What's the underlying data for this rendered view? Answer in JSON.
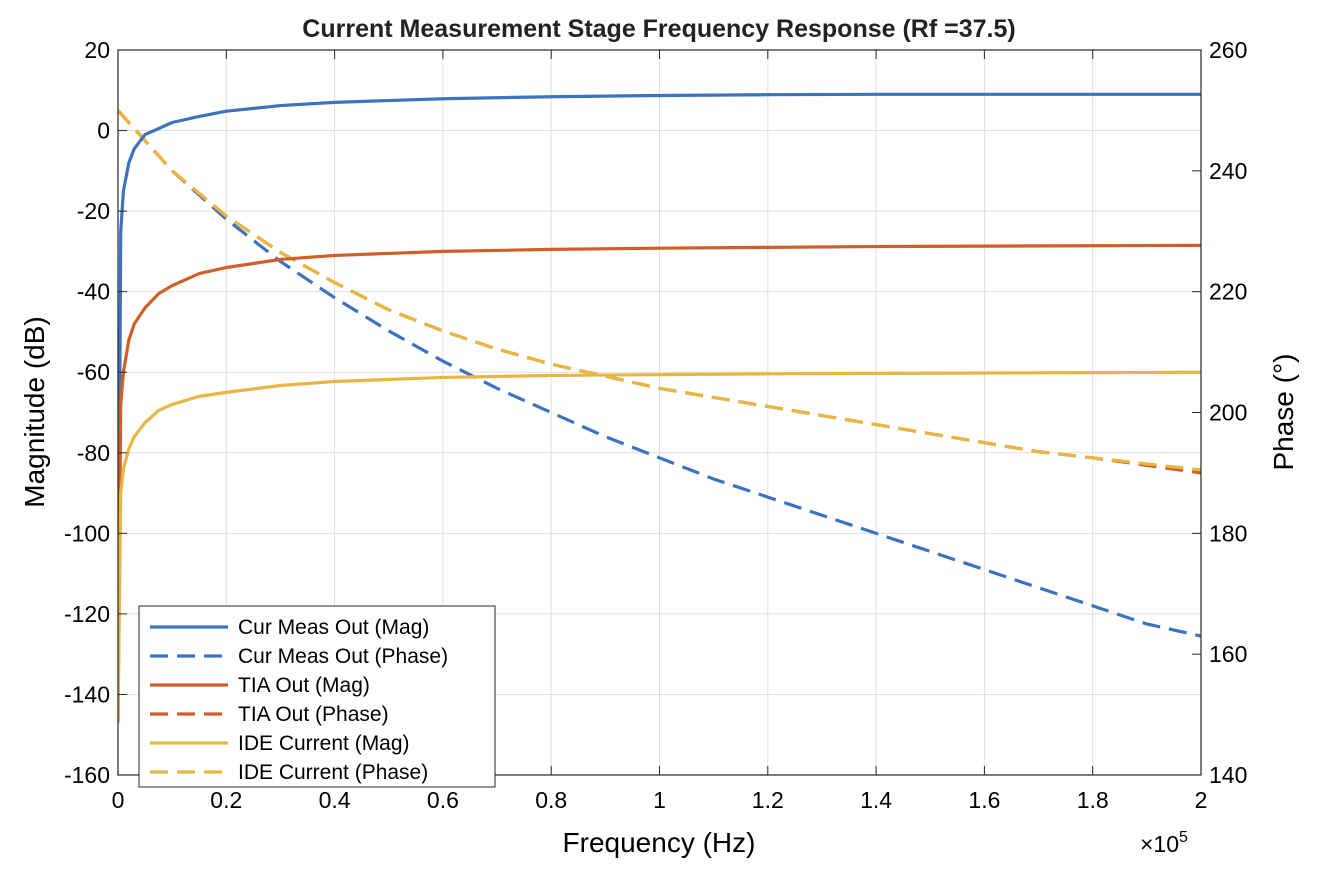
{
  "chart_data": {
    "type": "line",
    "title": "Current Measurement Stage Frequency Response (Rf =37.5)",
    "xlabel": "Frequency (Hz)",
    "ylabel_left": "Magnitude (dB)",
    "ylabel_right": "Phase (°)",
    "x_exponent_label": "×10",
    "x_exponent_power": "5",
    "xlim": [
      0,
      200000
    ],
    "ylim_left": [
      -160,
      20
    ],
    "ylim_right": [
      140,
      260
    ],
    "x_ticks": [
      0,
      20000,
      40000,
      60000,
      80000,
      100000,
      120000,
      140000,
      160000,
      180000,
      200000
    ],
    "x_tick_labels": [
      "0",
      "0.2",
      "0.4",
      "0.6",
      "0.8",
      "1",
      "1.2",
      "1.4",
      "1.6",
      "1.8",
      "2"
    ],
    "y_left_ticks": [
      20,
      0,
      -20,
      -40,
      -60,
      -80,
      -100,
      -120,
      -140,
      -160
    ],
    "y_left_tick_labels": [
      "20",
      "0",
      "-20",
      "-40",
      "-60",
      "-80",
      "-100",
      "-120",
      "-140",
      "-160"
    ],
    "y_right_ticks": [
      260,
      240,
      220,
      200,
      180,
      160,
      140
    ],
    "y_right_tick_labels": [
      "260",
      "240",
      "220",
      "200",
      "180",
      "160",
      "140"
    ],
    "grid": true,
    "legend_position": "bottom-left",
    "colors": {
      "blue": "#3B73C0",
      "orange": "#D15E26",
      "yellow": "#E8B641"
    },
    "series": [
      {
        "name": "Cur Meas Out (Mag)",
        "axis": "left",
        "style": "solid",
        "color": "#3B73C0",
        "x": [
          0,
          500,
          1000,
          2000,
          3000,
          5000,
          7500,
          10000,
          15000,
          20000,
          30000,
          40000,
          60000,
          80000,
          100000,
          120000,
          140000,
          160000,
          180000,
          200000
        ],
        "y": [
          -147,
          -25,
          -15,
          -8,
          -4.5,
          -1,
          0.5,
          2,
          3.5,
          4.8,
          6.2,
          7,
          7.9,
          8.4,
          8.7,
          8.9,
          9,
          9,
          9,
          9
        ]
      },
      {
        "name": "Cur Meas Out (Phase)",
        "axis": "right",
        "style": "dashed",
        "color": "#3B73C0",
        "x": [
          0,
          10000,
          20000,
          30000,
          40000,
          50000,
          60000,
          70000,
          80000,
          90000,
          100000,
          110000,
          120000,
          130000,
          140000,
          150000,
          160000,
          170000,
          180000,
          190000,
          200000
        ],
        "y": [
          250,
          240,
          232,
          225,
          219,
          213.5,
          208.5,
          204,
          200,
          196,
          192.5,
          189,
          186,
          183,
          180,
          177,
          174,
          171,
          168,
          165,
          163
        ]
      },
      {
        "name": "TIA Out (Mag)",
        "axis": "left",
        "style": "solid",
        "color": "#D15E26",
        "x": [
          0,
          500,
          1000,
          2000,
          3000,
          5000,
          7500,
          10000,
          15000,
          20000,
          30000,
          40000,
          60000,
          80000,
          100000,
          120000,
          140000,
          160000,
          180000,
          200000
        ],
        "y": [
          -147,
          -68,
          -60,
          -52,
          -48,
          -44,
          -40.5,
          -38.5,
          -35.5,
          -34,
          -32,
          -31,
          -30,
          -29.5,
          -29.2,
          -29,
          -28.8,
          -28.7,
          -28.6,
          -28.5
        ]
      },
      {
        "name": "TIA Out (Phase)",
        "axis": "right",
        "style": "dashed",
        "color": "#D15E26",
        "x": [
          0,
          10000,
          20000,
          30000,
          40000,
          50000,
          60000,
          70000,
          80000,
          90000,
          100000,
          110000,
          120000,
          130000,
          140000,
          150000,
          160000,
          170000,
          180000,
          200000
        ],
        "y": [
          250,
          240,
          232.5,
          226.5,
          221.5,
          217,
          213.5,
          210.5,
          208,
          206,
          204,
          202.5,
          201,
          199.5,
          198,
          196.5,
          195,
          193.5,
          192.5,
          190
        ]
      },
      {
        "name": "IDE Current (Mag)",
        "axis": "left",
        "style": "solid",
        "color": "#E8B641",
        "x": [
          0,
          500,
          1000,
          2000,
          3000,
          5000,
          7500,
          10000,
          15000,
          20000,
          30000,
          40000,
          60000,
          80000,
          100000,
          120000,
          140000,
          160000,
          180000,
          200000
        ],
        "y": [
          -147,
          -90,
          -84,
          -79,
          -76,
          -72.5,
          -69.5,
          -68,
          -66,
          -65,
          -63.3,
          -62.3,
          -61.3,
          -60.8,
          -60.6,
          -60.4,
          -60.3,
          -60.2,
          -60.1,
          -60
        ]
      },
      {
        "name": "IDE Current (Phase)",
        "axis": "right",
        "style": "dashed",
        "color": "#E8B641",
        "x": [
          0,
          10000,
          20000,
          30000,
          40000,
          50000,
          60000,
          70000,
          80000,
          90000,
          100000,
          110000,
          120000,
          130000,
          140000,
          150000,
          160000,
          170000,
          180000,
          200000
        ],
        "y": [
          250,
          240,
          232.5,
          226.5,
          221.5,
          217,
          213.5,
          210.5,
          208,
          206,
          204,
          202.5,
          201,
          199.5,
          198,
          196.5,
          195,
          193.5,
          192.5,
          190.5
        ]
      }
    ]
  }
}
